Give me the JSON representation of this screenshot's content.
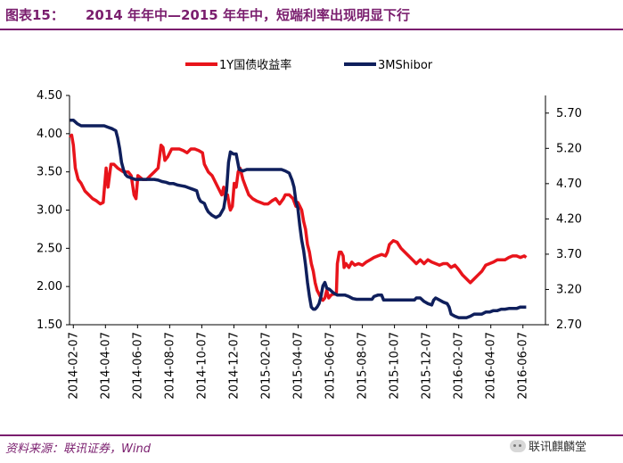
{
  "header": {
    "figure_label": "图表15：",
    "title": "2014 年年中—2015 年年中，短端利率出现明显下行"
  },
  "footer": {
    "source": "资料来源：联讯证券，Wind",
    "watermark": "联讯麒麟堂"
  },
  "colors": {
    "accent": "#7a1e6e",
    "series_red": "#e8141b",
    "series_navy": "#0f1f5c"
  },
  "chart_data": {
    "type": "line",
    "title": "",
    "legend_position": "top-center",
    "grid": false,
    "x_tick_labels": [
      "2014-02-07",
      "2014-04-07",
      "2014-06-07",
      "2014-08-07",
      "2014-10-07",
      "2014-12-07",
      "2015-02-07",
      "2015-04-07",
      "2015-06-07",
      "2015-08-07",
      "2015-10-07",
      "2015-12-07",
      "2016-02-07",
      "2016-04-07",
      "2016-06-07"
    ],
    "x_range": [
      2014.08,
      2016.55
    ],
    "y_left": {
      "min": 1.5,
      "max": 4.5,
      "ticks": [
        "1.50",
        "2.00",
        "2.50",
        "3.00",
        "3.50",
        "4.00",
        "4.50"
      ]
    },
    "y_right": {
      "min": 2.7,
      "max": 5.95,
      "ticks": [
        "2.70",
        "3.20",
        "3.70",
        "4.20",
        "4.70",
        "5.20",
        "5.70"
      ]
    },
    "series": [
      {
        "name": "1Y国债收益率",
        "axis": "left",
        "color": "#e8141b",
        "points": [
          [
            2014.083,
            3.95
          ],
          [
            2014.091,
            3.98
          ],
          [
            2014.1,
            3.85
          ],
          [
            2014.11,
            3.55
          ],
          [
            2014.125,
            3.4
          ],
          [
            2014.14,
            3.35
          ],
          [
            2014.16,
            3.25
          ],
          [
            2014.18,
            3.2
          ],
          [
            2014.2,
            3.15
          ],
          [
            2014.22,
            3.12
          ],
          [
            2014.24,
            3.08
          ],
          [
            2014.255,
            3.1
          ],
          [
            2014.27,
            3.55
          ],
          [
            2014.28,
            3.3
          ],
          [
            2014.295,
            3.6
          ],
          [
            2014.31,
            3.6
          ],
          [
            2014.33,
            3.55
          ],
          [
            2014.36,
            3.5
          ],
          [
            2014.385,
            3.5
          ],
          [
            2014.4,
            3.45
          ],
          [
            2014.415,
            3.2
          ],
          [
            2014.425,
            3.15
          ],
          [
            2014.435,
            3.45
          ],
          [
            2014.46,
            3.4
          ],
          [
            2014.48,
            3.4
          ],
          [
            2014.5,
            3.45
          ],
          [
            2014.52,
            3.5
          ],
          [
            2014.54,
            3.55
          ],
          [
            2014.55,
            3.75
          ],
          [
            2014.555,
            3.85
          ],
          [
            2014.565,
            3.82
          ],
          [
            2014.575,
            3.65
          ],
          [
            2014.59,
            3.7
          ],
          [
            2014.61,
            3.8
          ],
          [
            2014.63,
            3.8
          ],
          [
            2014.65,
            3.8
          ],
          [
            2014.67,
            3.78
          ],
          [
            2014.69,
            3.75
          ],
          [
            2014.71,
            3.8
          ],
          [
            2014.73,
            3.8
          ],
          [
            2014.75,
            3.78
          ],
          [
            2014.77,
            3.75
          ],
          [
            2014.78,
            3.6
          ],
          [
            2014.8,
            3.5
          ],
          [
            2014.82,
            3.45
          ],
          [
            2014.84,
            3.35
          ],
          [
            2014.86,
            3.25
          ],
          [
            2014.87,
            3.2
          ],
          [
            2014.88,
            3.3
          ],
          [
            2014.89,
            3.15
          ],
          [
            2014.9,
            3.2
          ],
          [
            2014.91,
            3.05
          ],
          [
            2014.915,
            3.0
          ],
          [
            2014.925,
            3.05
          ],
          [
            2014.935,
            3.35
          ],
          [
            2014.945,
            3.3
          ],
          [
            2014.955,
            3.5
          ],
          [
            2014.965,
            3.55
          ],
          [
            2014.98,
            3.4
          ],
          [
            2014.995,
            3.3
          ],
          [
            2015.01,
            3.2
          ],
          [
            2015.03,
            3.15
          ],
          [
            2015.05,
            3.12
          ],
          [
            2015.07,
            3.1
          ],
          [
            2015.09,
            3.08
          ],
          [
            2015.11,
            3.08
          ],
          [
            2015.13,
            3.12
          ],
          [
            2015.15,
            3.15
          ],
          [
            2015.17,
            3.08
          ],
          [
            2015.19,
            3.15
          ],
          [
            2015.2,
            3.2
          ],
          [
            2015.22,
            3.2
          ],
          [
            2015.24,
            3.15
          ],
          [
            2015.255,
            3.05
          ],
          [
            2015.265,
            3.1
          ],
          [
            2015.275,
            3.05
          ],
          [
            2015.285,
            3.0
          ],
          [
            2015.295,
            2.85
          ],
          [
            2015.305,
            2.75
          ],
          [
            2015.315,
            2.55
          ],
          [
            2015.325,
            2.45
          ],
          [
            2015.335,
            2.3
          ],
          [
            2015.345,
            2.2
          ],
          [
            2015.355,
            2.05
          ],
          [
            2015.365,
            1.95
          ],
          [
            2015.375,
            1.9
          ],
          [
            2015.385,
            1.85
          ],
          [
            2015.395,
            1.82
          ],
          [
            2015.405,
            1.85
          ],
          [
            2015.415,
            1.95
          ],
          [
            2015.425,
            1.85
          ],
          [
            2015.435,
            1.88
          ],
          [
            2015.445,
            1.9
          ],
          [
            2015.455,
            1.9
          ],
          [
            2015.465,
            1.9
          ],
          [
            2015.47,
            2.3
          ],
          [
            2015.48,
            2.45
          ],
          [
            2015.49,
            2.45
          ],
          [
            2015.5,
            2.4
          ],
          [
            2015.505,
            2.25
          ],
          [
            2015.515,
            2.3
          ],
          [
            2015.53,
            2.25
          ],
          [
            2015.545,
            2.32
          ],
          [
            2015.56,
            2.28
          ],
          [
            2015.58,
            2.3
          ],
          [
            2015.6,
            2.28
          ],
          [
            2015.62,
            2.32
          ],
          [
            2015.64,
            2.35
          ],
          [
            2015.66,
            2.38
          ],
          [
            2015.68,
            2.4
          ],
          [
            2015.7,
            2.42
          ],
          [
            2015.72,
            2.4
          ],
          [
            2015.73,
            2.45
          ],
          [
            2015.74,
            2.55
          ],
          [
            2015.76,
            2.6
          ],
          [
            2015.78,
            2.58
          ],
          [
            2015.8,
            2.5
          ],
          [
            2015.82,
            2.45
          ],
          [
            2015.84,
            2.4
          ],
          [
            2015.86,
            2.35
          ],
          [
            2015.88,
            2.3
          ],
          [
            2015.9,
            2.35
          ],
          [
            2015.92,
            2.3
          ],
          [
            2015.94,
            2.35
          ],
          [
            2015.96,
            2.32
          ],
          [
            2015.98,
            2.3
          ],
          [
            2016.0,
            2.28
          ],
          [
            2016.02,
            2.3
          ],
          [
            2016.04,
            2.3
          ],
          [
            2016.06,
            2.25
          ],
          [
            2016.08,
            2.28
          ],
          [
            2016.1,
            2.22
          ],
          [
            2016.12,
            2.15
          ],
          [
            2016.14,
            2.1
          ],
          [
            2016.16,
            2.05
          ],
          [
            2016.18,
            2.1
          ],
          [
            2016.2,
            2.15
          ],
          [
            2016.22,
            2.2
          ],
          [
            2016.24,
            2.28
          ],
          [
            2016.26,
            2.3
          ],
          [
            2016.28,
            2.32
          ],
          [
            2016.3,
            2.35
          ],
          [
            2016.32,
            2.35
          ],
          [
            2016.34,
            2.35
          ],
          [
            2016.36,
            2.38
          ],
          [
            2016.38,
            2.4
          ],
          [
            2016.4,
            2.4
          ],
          [
            2016.42,
            2.38
          ],
          [
            2016.44,
            2.4
          ],
          [
            2016.45,
            2.38
          ]
        ]
      },
      {
        "name": "3MShibor",
        "axis": "right",
        "color": "#0f1f5c",
        "points": [
          [
            2014.083,
            5.6
          ],
          [
            2014.1,
            5.6
          ],
          [
            2014.12,
            5.55
          ],
          [
            2014.14,
            5.52
          ],
          [
            2014.16,
            5.52
          ],
          [
            2014.18,
            5.52
          ],
          [
            2014.2,
            5.52
          ],
          [
            2014.22,
            5.52
          ],
          [
            2014.24,
            5.52
          ],
          [
            2014.26,
            5.52
          ],
          [
            2014.28,
            5.5
          ],
          [
            2014.3,
            5.48
          ],
          [
            2014.32,
            5.45
          ],
          [
            2014.33,
            5.35
          ],
          [
            2014.34,
            5.2
          ],
          [
            2014.35,
            5.0
          ],
          [
            2014.36,
            4.9
          ],
          [
            2014.37,
            4.83
          ],
          [
            2014.38,
            4.8
          ],
          [
            2014.4,
            4.78
          ],
          [
            2014.42,
            4.76
          ],
          [
            2014.44,
            4.76
          ],
          [
            2014.46,
            4.76
          ],
          [
            2014.48,
            4.76
          ],
          [
            2014.5,
            4.76
          ],
          [
            2014.52,
            4.76
          ],
          [
            2014.54,
            4.75
          ],
          [
            2014.56,
            4.73
          ],
          [
            2014.58,
            4.72
          ],
          [
            2014.6,
            4.7
          ],
          [
            2014.62,
            4.7
          ],
          [
            2014.64,
            4.68
          ],
          [
            2014.66,
            4.67
          ],
          [
            2014.68,
            4.66
          ],
          [
            2014.7,
            4.64
          ],
          [
            2014.72,
            4.62
          ],
          [
            2014.74,
            4.6
          ],
          [
            2014.75,
            4.5
          ],
          [
            2014.76,
            4.45
          ],
          [
            2014.78,
            4.42
          ],
          [
            2014.79,
            4.35
          ],
          [
            2014.8,
            4.3
          ],
          [
            2014.82,
            4.25
          ],
          [
            2014.84,
            4.22
          ],
          [
            2014.86,
            4.25
          ],
          [
            2014.88,
            4.35
          ],
          [
            2014.895,
            4.6
          ],
          [
            2014.905,
            5.0
          ],
          [
            2014.915,
            5.15
          ],
          [
            2014.93,
            5.12
          ],
          [
            2014.945,
            5.12
          ],
          [
            2014.96,
            4.9
          ],
          [
            2014.98,
            4.88
          ],
          [
            2015.0,
            4.9
          ],
          [
            2015.02,
            4.9
          ],
          [
            2015.04,
            4.9
          ],
          [
            2015.06,
            4.9
          ],
          [
            2015.08,
            4.9
          ],
          [
            2015.1,
            4.9
          ],
          [
            2015.12,
            4.9
          ],
          [
            2015.14,
            4.9
          ],
          [
            2015.16,
            4.9
          ],
          [
            2015.18,
            4.9
          ],
          [
            2015.2,
            4.88
          ],
          [
            2015.22,
            4.85
          ],
          [
            2015.235,
            4.75
          ],
          [
            2015.245,
            4.65
          ],
          [
            2015.255,
            4.45
          ],
          [
            2015.265,
            4.35
          ],
          [
            2015.275,
            4.1
          ],
          [
            2015.285,
            3.9
          ],
          [
            2015.295,
            3.75
          ],
          [
            2015.305,
            3.55
          ],
          [
            2015.315,
            3.3
          ],
          [
            2015.325,
            3.1
          ],
          [
            2015.335,
            2.95
          ],
          [
            2015.345,
            2.92
          ],
          [
            2015.355,
            2.92
          ],
          [
            2015.365,
            2.95
          ],
          [
            2015.375,
            3.0
          ],
          [
            2015.385,
            3.1
          ],
          [
            2015.395,
            3.25
          ],
          [
            2015.405,
            3.3
          ],
          [
            2015.415,
            3.22
          ],
          [
            2015.43,
            3.2
          ],
          [
            2015.45,
            3.15
          ],
          [
            2015.47,
            3.12
          ],
          [
            2015.49,
            3.12
          ],
          [
            2015.51,
            3.12
          ],
          [
            2015.53,
            3.1
          ],
          [
            2015.55,
            3.07
          ],
          [
            2015.57,
            3.06
          ],
          [
            2015.59,
            3.06
          ],
          [
            2015.61,
            3.06
          ],
          [
            2015.63,
            3.06
          ],
          [
            2015.65,
            3.06
          ],
          [
            2015.66,
            3.1
          ],
          [
            2015.68,
            3.12
          ],
          [
            2015.7,
            3.12
          ],
          [
            2015.71,
            3.05
          ],
          [
            2015.73,
            3.05
          ],
          [
            2015.75,
            3.05
          ],
          [
            2015.77,
            3.05
          ],
          [
            2015.79,
            3.05
          ],
          [
            2015.81,
            3.05
          ],
          [
            2015.83,
            3.05
          ],
          [
            2015.85,
            3.05
          ],
          [
            2015.87,
            3.05
          ],
          [
            2015.88,
            3.08
          ],
          [
            2015.9,
            3.08
          ],
          [
            2015.92,
            3.03
          ],
          [
            2015.94,
            3.0
          ],
          [
            2015.96,
            2.98
          ],
          [
            2015.97,
            3.05
          ],
          [
            2015.98,
            3.08
          ],
          [
            2016.0,
            3.05
          ],
          [
            2016.02,
            3.02
          ],
          [
            2016.04,
            3.0
          ],
          [
            2016.05,
            2.95
          ],
          [
            2016.06,
            2.85
          ],
          [
            2016.08,
            2.82
          ],
          [
            2016.1,
            2.8
          ],
          [
            2016.12,
            2.8
          ],
          [
            2016.14,
            2.8
          ],
          [
            2016.16,
            2.82
          ],
          [
            2016.18,
            2.85
          ],
          [
            2016.2,
            2.85
          ],
          [
            2016.22,
            2.85
          ],
          [
            2016.24,
            2.88
          ],
          [
            2016.26,
            2.88
          ],
          [
            2016.28,
            2.9
          ],
          [
            2016.3,
            2.9
          ],
          [
            2016.32,
            2.92
          ],
          [
            2016.34,
            2.92
          ],
          [
            2016.36,
            2.93
          ],
          [
            2016.38,
            2.93
          ],
          [
            2016.4,
            2.93
          ],
          [
            2016.42,
            2.95
          ],
          [
            2016.44,
            2.95
          ],
          [
            2016.45,
            2.95
          ]
        ]
      }
    ]
  }
}
